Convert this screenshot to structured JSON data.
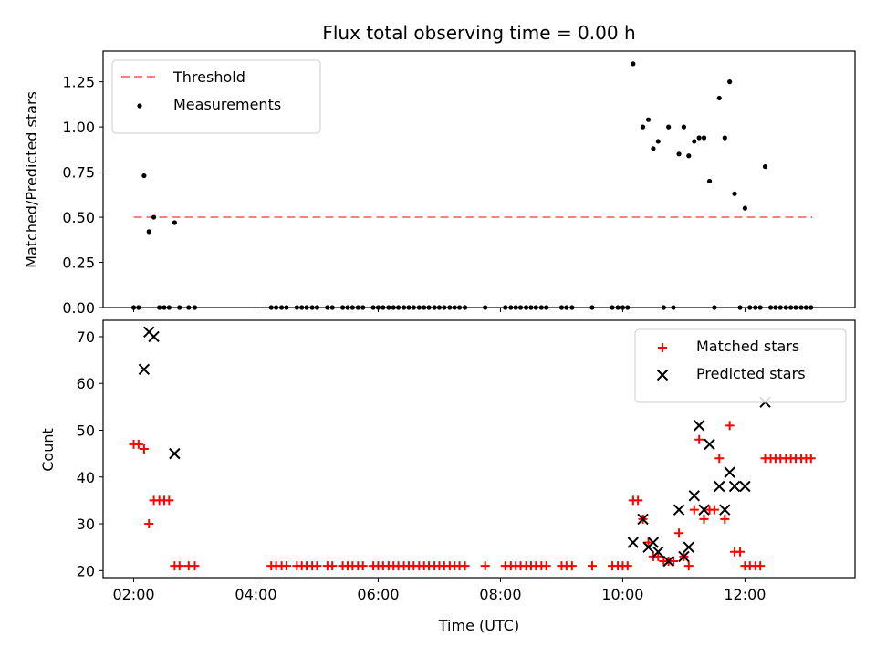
{
  "chart_data": {
    "type": "scatter",
    "title": "Flux total observing time = 0.00 h",
    "x_axis": {
      "label": "Time (UTC)",
      "ticks": [
        "02:00",
        "04:00",
        "06:00",
        "08:00",
        "10:00",
        "12:00"
      ],
      "tick_values_hours": [
        2,
        4,
        6,
        8,
        10,
        12
      ],
      "range_hours": [
        1.5,
        13.8
      ]
    },
    "panels": [
      {
        "ylabel": "Matched/Predicted stars",
        "ylim": [
          0,
          1.42
        ],
        "yticks": [
          "0.00",
          "0.25",
          "0.50",
          "0.75",
          "1.00",
          "1.25"
        ],
        "ytick_values": [
          0,
          0.25,
          0.5,
          0.75,
          1.0,
          1.25
        ],
        "legend_position": "upper-left",
        "threshold": {
          "name": "Threshold",
          "y": 0.5,
          "x_start": 2.0,
          "x_end": 13.1,
          "color": "#ff7f7f"
        },
        "series": [
          {
            "name": "Measurements",
            "color": "#000000",
            "marker": "dot",
            "points": [
              [
                2.0,
                0
              ],
              [
                2.08,
                0
              ],
              [
                2.17,
                0.73
              ],
              [
                2.25,
                0.42
              ],
              [
                2.33,
                0.5
              ],
              [
                2.42,
                0
              ],
              [
                2.5,
                0
              ],
              [
                2.58,
                0
              ],
              [
                2.67,
                0.47
              ],
              [
                2.75,
                0
              ],
              [
                2.9,
                0
              ],
              [
                3.0,
                0
              ],
              [
                4.25,
                0
              ],
              [
                4.33,
                0
              ],
              [
                4.42,
                0
              ],
              [
                4.5,
                0
              ],
              [
                4.67,
                0
              ],
              [
                4.75,
                0
              ],
              [
                4.83,
                0
              ],
              [
                4.92,
                0
              ],
              [
                5.0,
                0
              ],
              [
                5.17,
                0
              ],
              [
                5.25,
                0
              ],
              [
                5.42,
                0
              ],
              [
                5.5,
                0
              ],
              [
                5.58,
                0
              ],
              [
                5.67,
                0
              ],
              [
                5.75,
                0
              ],
              [
                5.92,
                0
              ],
              [
                6.0,
                0
              ],
              [
                6.08,
                0
              ],
              [
                6.17,
                0
              ],
              [
                6.25,
                0
              ],
              [
                6.33,
                0
              ],
              [
                6.42,
                0
              ],
              [
                6.5,
                0
              ],
              [
                6.58,
                0
              ],
              [
                6.67,
                0
              ],
              [
                6.75,
                0
              ],
              [
                6.83,
                0
              ],
              [
                6.92,
                0
              ],
              [
                7.0,
                0
              ],
              [
                7.08,
                0
              ],
              [
                7.17,
                0
              ],
              [
                7.25,
                0
              ],
              [
                7.33,
                0
              ],
              [
                7.42,
                0
              ],
              [
                7.75,
                0
              ],
              [
                8.08,
                0
              ],
              [
                8.17,
                0
              ],
              [
                8.25,
                0
              ],
              [
                8.33,
                0
              ],
              [
                8.42,
                0
              ],
              [
                8.5,
                0
              ],
              [
                8.58,
                0
              ],
              [
                8.67,
                0
              ],
              [
                8.75,
                0
              ],
              [
                9.0,
                0
              ],
              [
                9.08,
                0
              ],
              [
                9.17,
                0
              ],
              [
                9.5,
                0
              ],
              [
                9.83,
                0
              ],
              [
                9.92,
                0
              ],
              [
                10.0,
                0
              ],
              [
                10.08,
                0
              ],
              [
                10.17,
                1.35
              ],
              [
                10.33,
                1.0
              ],
              [
                10.42,
                1.04
              ],
              [
                10.5,
                0.88
              ],
              [
                10.58,
                0.92
              ],
              [
                10.67,
                0
              ],
              [
                10.75,
                1.0
              ],
              [
                10.83,
                0
              ],
              [
                10.92,
                0.85
              ],
              [
                11.0,
                1.0
              ],
              [
                11.08,
                0.84
              ],
              [
                11.17,
                0.92
              ],
              [
                11.25,
                0.94
              ],
              [
                11.33,
                0.94
              ],
              [
                11.42,
                0.7
              ],
              [
                11.5,
                0
              ],
              [
                11.58,
                1.16
              ],
              [
                11.67,
                0.94
              ],
              [
                11.75,
                1.25
              ],
              [
                11.83,
                0.63
              ],
              [
                11.92,
                0
              ],
              [
                12.0,
                0.55
              ],
              [
                12.08,
                0
              ],
              [
                12.17,
                0
              ],
              [
                12.25,
                0
              ],
              [
                12.33,
                0.78
              ],
              [
                12.42,
                0
              ],
              [
                12.5,
                0
              ],
              [
                12.58,
                0
              ],
              [
                12.67,
                0
              ],
              [
                12.75,
                0
              ],
              [
                12.83,
                0
              ],
              [
                12.92,
                0
              ],
              [
                13.0,
                0
              ],
              [
                13.08,
                0
              ]
            ]
          }
        ]
      },
      {
        "ylabel": "Count",
        "ylim": [
          18.5,
          73.5
        ],
        "yticks": [
          "20",
          "30",
          "40",
          "50",
          "60",
          "70"
        ],
        "ytick_values": [
          20,
          30,
          40,
          50,
          60,
          70
        ],
        "legend_position": "upper-right",
        "series": [
          {
            "name": "Matched stars",
            "color": "#ff0000",
            "marker": "plus",
            "points": [
              [
                2.0,
                47
              ],
              [
                2.08,
                47
              ],
              [
                2.17,
                46
              ],
              [
                2.25,
                30
              ],
              [
                2.33,
                35
              ],
              [
                2.42,
                35
              ],
              [
                2.5,
                35
              ],
              [
                2.58,
                35
              ],
              [
                2.67,
                21
              ],
              [
                2.75,
                21
              ],
              [
                2.9,
                21
              ],
              [
                3.0,
                21
              ],
              [
                4.25,
                21
              ],
              [
                4.33,
                21
              ],
              [
                4.42,
                21
              ],
              [
                4.5,
                21
              ],
              [
                4.67,
                21
              ],
              [
                4.75,
                21
              ],
              [
                4.83,
                21
              ],
              [
                4.92,
                21
              ],
              [
                5.0,
                21
              ],
              [
                5.17,
                21
              ],
              [
                5.25,
                21
              ],
              [
                5.42,
                21
              ],
              [
                5.5,
                21
              ],
              [
                5.58,
                21
              ],
              [
                5.67,
                21
              ],
              [
                5.75,
                21
              ],
              [
                5.92,
                21
              ],
              [
                6.0,
                21
              ],
              [
                6.08,
                21
              ],
              [
                6.17,
                21
              ],
              [
                6.25,
                21
              ],
              [
                6.33,
                21
              ],
              [
                6.42,
                21
              ],
              [
                6.5,
                21
              ],
              [
                6.58,
                21
              ],
              [
                6.67,
                21
              ],
              [
                6.75,
                21
              ],
              [
                6.83,
                21
              ],
              [
                6.92,
                21
              ],
              [
                7.0,
                21
              ],
              [
                7.08,
                21
              ],
              [
                7.17,
                21
              ],
              [
                7.25,
                21
              ],
              [
                7.33,
                21
              ],
              [
                7.42,
                21
              ],
              [
                7.75,
                21
              ],
              [
                8.08,
                21
              ],
              [
                8.17,
                21
              ],
              [
                8.25,
                21
              ],
              [
                8.33,
                21
              ],
              [
                8.42,
                21
              ],
              [
                8.5,
                21
              ],
              [
                8.58,
                21
              ],
              [
                8.67,
                21
              ],
              [
                8.75,
                21
              ],
              [
                9.0,
                21
              ],
              [
                9.08,
                21
              ],
              [
                9.17,
                21
              ],
              [
                9.5,
                21
              ],
              [
                9.83,
                21
              ],
              [
                9.92,
                21
              ],
              [
                10.0,
                21
              ],
              [
                10.08,
                21
              ],
              [
                10.17,
                35
              ],
              [
                10.25,
                35
              ],
              [
                10.33,
                31
              ],
              [
                10.42,
                26
              ],
              [
                10.5,
                23
              ],
              [
                10.58,
                23
              ],
              [
                10.67,
                22
              ],
              [
                10.75,
                22
              ],
              [
                10.83,
                22
              ],
              [
                10.92,
                28
              ],
              [
                11.0,
                23
              ],
              [
                11.08,
                21
              ],
              [
                11.17,
                33
              ],
              [
                11.25,
                48
              ],
              [
                11.33,
                31
              ],
              [
                11.42,
                33
              ],
              [
                11.5,
                33
              ],
              [
                11.58,
                44
              ],
              [
                11.67,
                31
              ],
              [
                11.75,
                51
              ],
              [
                11.83,
                24
              ],
              [
                11.92,
                24
              ],
              [
                12.0,
                21
              ],
              [
                12.08,
                21
              ],
              [
                12.17,
                21
              ],
              [
                12.25,
                21
              ],
              [
                12.33,
                44
              ],
              [
                12.42,
                44
              ],
              [
                12.5,
                44
              ],
              [
                12.58,
                44
              ],
              [
                12.67,
                44
              ],
              [
                12.75,
                44
              ],
              [
                12.83,
                44
              ],
              [
                12.92,
                44
              ],
              [
                13.0,
                44
              ],
              [
                13.08,
                44
              ]
            ]
          },
          {
            "name": "Predicted stars",
            "color": "#000000",
            "marker": "x",
            "points": [
              [
                2.17,
                63
              ],
              [
                2.25,
                71
              ],
              [
                2.33,
                70
              ],
              [
                2.67,
                45
              ],
              [
                10.17,
                26
              ],
              [
                10.33,
                31
              ],
              [
                10.42,
                25
              ],
              [
                10.5,
                26
              ],
              [
                10.58,
                24
              ],
              [
                10.75,
                22
              ],
              [
                10.92,
                33
              ],
              [
                11.0,
                23
              ],
              [
                11.08,
                25
              ],
              [
                11.17,
                36
              ],
              [
                11.25,
                51
              ],
              [
                11.33,
                33
              ],
              [
                11.42,
                47
              ],
              [
                11.58,
                38
              ],
              [
                11.67,
                33
              ],
              [
                11.75,
                41
              ],
              [
                11.83,
                38
              ],
              [
                12.0,
                38
              ],
              [
                12.33,
                56
              ]
            ]
          }
        ]
      }
    ]
  }
}
